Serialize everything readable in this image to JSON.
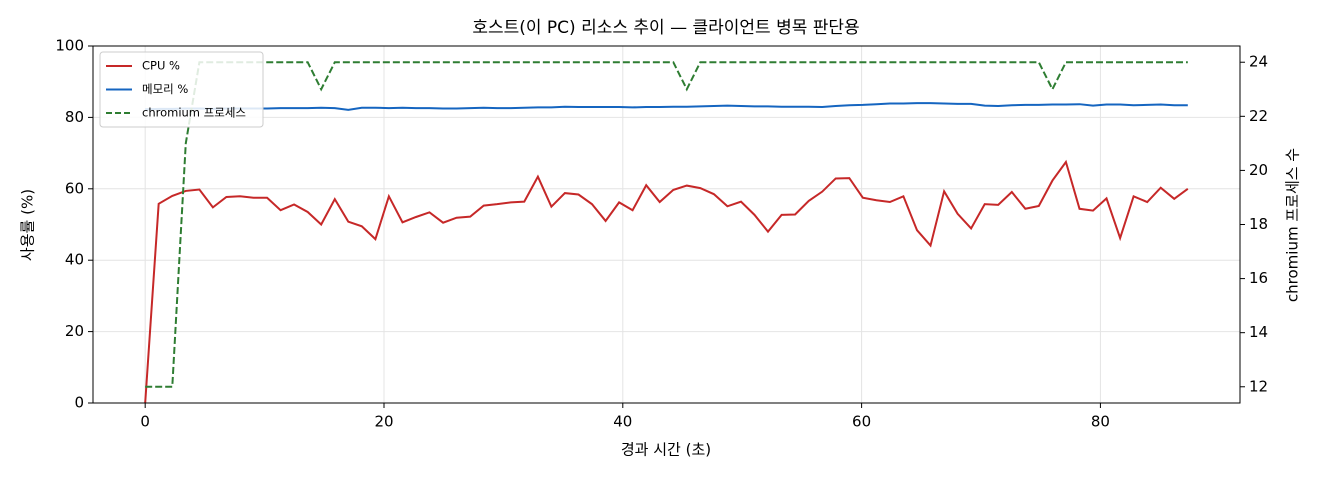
{
  "chart_data": {
    "type": "line",
    "title": "호스트(이 PC) 리소스 추이 — 클라이언트 병목 판단용",
    "x_label": "경과 시간 (초)",
    "y_label": "사용률 (%)",
    "y2_label": "chromium 프로세스 수",
    "x": [
      0,
      1.13,
      2.27,
      3.4,
      4.54,
      5.67,
      6.8,
      7.94,
      9.07,
      10.21,
      11.34,
      12.47,
      13.61,
      14.74,
      15.88,
      17.01,
      18.14,
      19.28,
      20.41,
      21.55,
      22.68,
      23.81,
      24.95,
      26.08,
      27.22,
      28.35,
      29.48,
      30.62,
      31.75,
      32.89,
      34.02,
      35.15,
      36.29,
      37.42,
      38.56,
      39.69,
      40.82,
      41.96,
      43.09,
      44.23,
      45.36,
      46.49,
      47.63,
      48.76,
      49.9,
      51.03,
      52.16,
      53.3,
      54.43,
      55.57,
      56.7,
      57.83,
      58.97,
      60.1,
      61.24,
      62.37,
      63.5,
      64.64,
      65.77,
      66.91,
      68.04,
      69.17,
      70.31,
      71.44,
      72.58,
      73.71,
      74.84,
      75.98,
      77.11,
      78.25,
      79.38,
      80.51,
      81.65,
      82.78,
      83.92,
      85.05,
      86.18,
      87.32
    ],
    "series": [
      {
        "name": "CPU %",
        "color": "#c62828",
        "linestyle": "solid",
        "values": [
          0,
          55.8,
          58,
          59.4,
          59.8,
          54.8,
          57.7,
          57.9,
          57.5,
          57.5,
          54,
          55.6,
          53.5,
          50,
          57.1,
          50.8,
          49.5,
          45.9,
          57.9,
          50.6,
          52.1,
          53.4,
          50.5,
          51.9,
          52.2,
          55.3,
          55.7,
          56.2,
          56.4,
          63.4,
          55,
          58.8,
          58.4,
          55.7,
          51,
          56.2,
          54,
          61,
          56.3,
          59.7,
          60.9,
          60.2,
          58.5,
          55.1,
          56.4,
          52.7,
          48,
          52.7,
          52.8,
          56.6,
          59.2,
          62.9,
          63,
          57.5,
          56.8,
          56.3,
          57.9,
          48.4,
          44.1,
          59.3,
          53,
          48.9,
          55.7,
          55.5,
          59.1,
          54.4,
          55.2,
          62.3,
          67.5,
          54.4,
          53.9,
          57.3,
          46.2,
          57.9,
          56.3,
          60.3,
          57.2,
          60
        ]
      },
      {
        "name": "메모리 %",
        "color": "#1565c0",
        "linestyle": "solid",
        "values": [
          82.3,
          82.4,
          82.4,
          82.5,
          82.5,
          82.4,
          82.5,
          82.5,
          82.5,
          82.5,
          82.6,
          82.6,
          82.6,
          82.7,
          82.6,
          82.1,
          82.7,
          82.7,
          82.6,
          82.7,
          82.6,
          82.6,
          82.5,
          82.5,
          82.6,
          82.7,
          82.6,
          82.6,
          82.7,
          82.8,
          82.8,
          83.0,
          82.9,
          82.9,
          82.9,
          82.9,
          82.8,
          82.9,
          82.9,
          83.0,
          83.0,
          83.1,
          83.2,
          83.3,
          83.2,
          83.1,
          83.1,
          83.0,
          83.0,
          83.0,
          82.9,
          83.2,
          83.4,
          83.5,
          83.7,
          83.9,
          83.9,
          84.0,
          84.0,
          83.9,
          83.8,
          83.8,
          83.3,
          83.2,
          83.4,
          83.5,
          83.5,
          83.6,
          83.6,
          83.7,
          83.3,
          83.6,
          83.6,
          83.4,
          83.5,
          83.6,
          83.4,
          83.4
        ]
      },
      {
        "name": "chromium 프로세스",
        "color": "#2e7d32",
        "linestyle": "dashed",
        "axis": "y2",
        "values": [
          12,
          12,
          12,
          21,
          24,
          24,
          24,
          24,
          24,
          24,
          24,
          24,
          24,
          23,
          24,
          24,
          24,
          24,
          24,
          24,
          24,
          24,
          24,
          24,
          24,
          24,
          24,
          24,
          24,
          24,
          24,
          24,
          24,
          24,
          24,
          24,
          24,
          24,
          24,
          24,
          23,
          24,
          24,
          24,
          24,
          24,
          24,
          24,
          24,
          24,
          24,
          24,
          24,
          24,
          24,
          24,
          24,
          24,
          24,
          24,
          24,
          24,
          24,
          24,
          24,
          24,
          24,
          23,
          24,
          24,
          24,
          24,
          24,
          24,
          24,
          24,
          24,
          24
        ]
      }
    ],
    "xlim": [
      -4.37,
      91.69
    ],
    "xticks": [
      0,
      20,
      40,
      60,
      80
    ],
    "ylim": [
      0,
      100
    ],
    "yticks": [
      0,
      20,
      40,
      60,
      80,
      100
    ],
    "y2lim": [
      11.4,
      24.6
    ],
    "y2ticks": [
      12,
      14,
      16,
      18,
      20,
      22,
      24
    ],
    "grid": true,
    "legend": "upper left"
  }
}
